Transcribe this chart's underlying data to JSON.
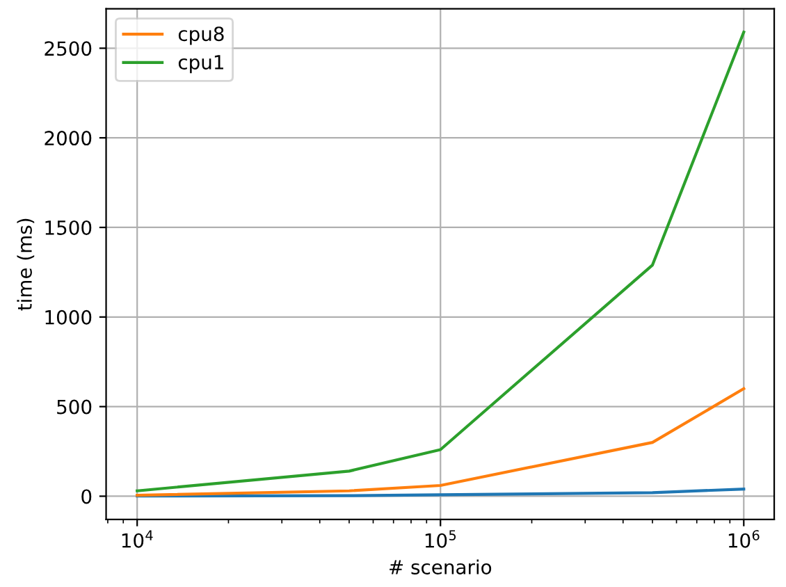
{
  "chart_data": {
    "type": "line",
    "xlabel": "# scenario",
    "ylabel": "time (ms)",
    "x": [
      10000,
      50000,
      100000,
      500000,
      1000000
    ],
    "series": [
      {
        "color": "#1f77b4",
        "values": [
          1,
          3,
          8,
          20,
          40
        ]
      },
      {
        "name": "cpu8",
        "color": "#ff7f0e",
        "values": [
          5,
          30,
          60,
          300,
          600
        ]
      },
      {
        "name": "cpu1",
        "color": "#2ca02c",
        "values": [
          30,
          140,
          260,
          1290,
          2590
        ]
      }
    ],
    "log": "x",
    "xlim": [
      7900,
      1260000
    ],
    "ylim": [
      -130,
      2720
    ],
    "xticks": [
      {
        "value": 10000,
        "label": "10$^{4}$"
      },
      {
        "value": 100000,
        "label": "10$^{5}$"
      },
      {
        "value": 1000000,
        "label": "10$^{6}$"
      }
    ],
    "yticks": [
      0,
      500,
      1000,
      1500,
      2000,
      2500
    ],
    "grid": true,
    "legend": "top left",
    "line_style": "solid",
    "marker": "none"
  }
}
